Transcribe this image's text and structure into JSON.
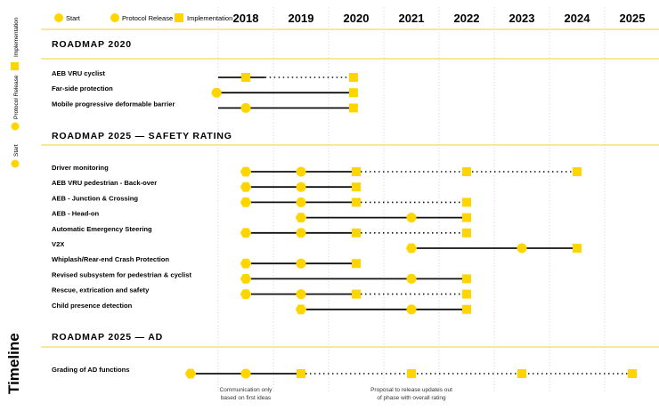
{
  "colors": {
    "yellow": "#FFD500",
    "line": "#111111",
    "rule": "#F3DC5C",
    "grid": "#D6D6D6"
  },
  "legend": {
    "start": "Start",
    "protocol_release": "Protocol Release",
    "implementation": "Implementation"
  },
  "side_legend": {
    "implementation": "Implementation",
    "protocol_release": "Protocol Release",
    "start": "Start"
  },
  "side_title": "Timeline",
  "years": [
    "2018",
    "2019",
    "2020",
    "2021",
    "2022",
    "2023",
    "2024",
    "2025"
  ],
  "sections": [
    {
      "title": "ROADMAP 2020",
      "rows": [
        {
          "label": "AEB VRU cyclist",
          "start": 2017.5,
          "solid_to": 2018.35,
          "dotted_to": 2019.95,
          "markers": [
            {
              "year": 2018,
              "type": "square"
            },
            {
              "year": 2019.95,
              "type": "square"
            }
          ]
        },
        {
          "label": "Far-side protection",
          "start": 2017.47,
          "solid_to": 2019.95,
          "dotted_to": null,
          "markers": [
            {
              "year": 2017.47,
              "type": "circle"
            },
            {
              "year": 2019.95,
              "type": "square"
            }
          ]
        },
        {
          "label": "Mobile progressive deformable barrier",
          "start": 2017.5,
          "solid_to": 2019.95,
          "dotted_to": null,
          "markers": [
            {
              "year": 2018,
              "type": "circle"
            },
            {
              "year": 2019.95,
              "type": "square"
            }
          ]
        }
      ]
    },
    {
      "title": "ROADMAP 2025 — SAFETY RATING",
      "rows": [
        {
          "label": "Driver monitoring",
          "start": 2018,
          "solid_to": 2020,
          "dotted_to": 2024,
          "markers": [
            {
              "year": 2018,
              "type": "hex"
            },
            {
              "year": 2019,
              "type": "circle"
            },
            {
              "year": 2020,
              "type": "square"
            },
            {
              "year": 2022,
              "type": "square"
            },
            {
              "year": 2024,
              "type": "square"
            }
          ]
        },
        {
          "label": "AEB VRU pedestrian - Back-over",
          "start": 2018,
          "solid_to": 2020,
          "dotted_to": null,
          "markers": [
            {
              "year": 2018,
              "type": "hex"
            },
            {
              "year": 2019,
              "type": "circle"
            },
            {
              "year": 2020,
              "type": "square"
            }
          ]
        },
        {
          "label": "AEB - Junction & Crossing",
          "start": 2018,
          "solid_to": 2020,
          "dotted_to": 2022,
          "markers": [
            {
              "year": 2018,
              "type": "hex"
            },
            {
              "year": 2019,
              "type": "circle"
            },
            {
              "year": 2020,
              "type": "square"
            },
            {
              "year": 2022,
              "type": "square"
            }
          ]
        },
        {
          "label": "AEB - Head-on",
          "start": 2019,
          "solid_to": 2022,
          "dotted_to": null,
          "markers": [
            {
              "year": 2019,
              "type": "hex"
            },
            {
              "year": 2021,
              "type": "circle"
            },
            {
              "year": 2022,
              "type": "square"
            }
          ]
        },
        {
          "label": "Automatic Emergency Steering",
          "start": 2018,
          "solid_to": 2020,
          "dotted_to": 2022,
          "markers": [
            {
              "year": 2018,
              "type": "hex"
            },
            {
              "year": 2019,
              "type": "circle"
            },
            {
              "year": 2020,
              "type": "square"
            },
            {
              "year": 2022,
              "type": "square"
            }
          ]
        },
        {
          "label": "V2X",
          "start": 2021,
          "solid_to": 2024,
          "dotted_to": null,
          "markers": [
            {
              "year": 2021,
              "type": "hex"
            },
            {
              "year": 2023,
              "type": "circle"
            },
            {
              "year": 2024,
              "type": "square"
            }
          ]
        },
        {
          "label": "Whiplash/Rear-end Crash Protection",
          "start": 2018,
          "solid_to": 2020,
          "dotted_to": null,
          "markers": [
            {
              "year": 2018,
              "type": "hex"
            },
            {
              "year": 2019,
              "type": "circle"
            },
            {
              "year": 2020,
              "type": "square"
            }
          ]
        },
        {
          "label": "Revised subsystem for pedestrian & cyclist",
          "start": 2018,
          "solid_to": 2022,
          "dotted_to": null,
          "markers": [
            {
              "year": 2018,
              "type": "hex"
            },
            {
              "year": 2021,
              "type": "circle"
            },
            {
              "year": 2022,
              "type": "square"
            }
          ]
        },
        {
          "label": "Rescue, extrication and safety",
          "start": 2018,
          "solid_to": 2020,
          "dotted_to": 2022,
          "markers": [
            {
              "year": 2018,
              "type": "hex"
            },
            {
              "year": 2019,
              "type": "circle"
            },
            {
              "year": 2020,
              "type": "square"
            },
            {
              "year": 2022,
              "type": "square"
            }
          ]
        },
        {
          "label": "Child presence detection",
          "start": 2019,
          "solid_to": 2022,
          "dotted_to": null,
          "markers": [
            {
              "year": 2019,
              "type": "hex"
            },
            {
              "year": 2021,
              "type": "circle"
            },
            {
              "year": 2022,
              "type": "square"
            }
          ]
        }
      ]
    },
    {
      "title": "ROADMAP 2025 — AD",
      "rows": [
        {
          "label": "Grading of AD functions",
          "start": 2017,
          "solid_to": 2019,
          "dotted_to": 2025,
          "markers": [
            {
              "year": 2017,
              "type": "hex"
            },
            {
              "year": 2018,
              "type": "circle"
            },
            {
              "year": 2019,
              "type": "square"
            },
            {
              "year": 2021,
              "type": "square"
            },
            {
              "year": 2023,
              "type": "square"
            },
            {
              "year": 2025,
              "type": "square"
            }
          ]
        }
      ]
    }
  ],
  "notes": [
    {
      "lines": [
        "Communication only",
        "based on first ideas"
      ],
      "year": 2018
    },
    {
      "lines": [
        "Proposal to release updates out",
        "of phase with overall rating"
      ],
      "year": 2021
    }
  ]
}
